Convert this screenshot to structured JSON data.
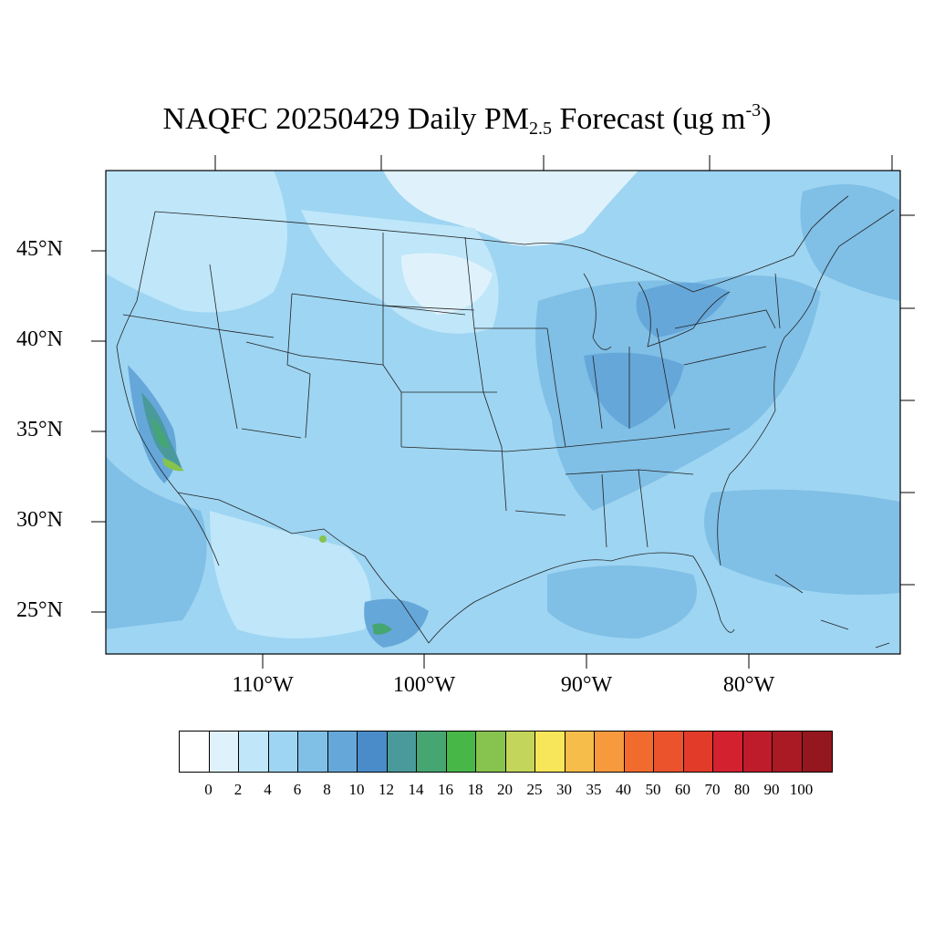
{
  "title": {
    "prefix": "NAQFC 20250429 Daily PM",
    "subscript": "2.5",
    "middle": " Forecast (ug m",
    "superscript": "-3",
    "suffix": ")"
  },
  "map": {
    "lat_labels": [
      "45°N",
      "40°N",
      "35°N",
      "30°N",
      "25°N"
    ],
    "lon_labels": [
      "110°W",
      "100°W",
      "90°W",
      "80°W"
    ],
    "background_color": "#9ed5f2"
  },
  "colorbar": {
    "colors": [
      "#ffffff",
      "#dff2fc",
      "#bfe6f9",
      "#9ed5f2",
      "#80bfe6",
      "#66a7da",
      "#4a8cc9",
      "#4a9a9c",
      "#45a672",
      "#47b748",
      "#86c34f",
      "#c3d55a",
      "#f8e65a",
      "#f7bd4a",
      "#f79a3d",
      "#f26b2e",
      "#eb532c",
      "#e33b2a",
      "#d42130",
      "#bf1c2b",
      "#aa1a25",
      "#94161e"
    ],
    "labels": [
      "0",
      "2",
      "4",
      "6",
      "8",
      "10",
      "12",
      "14",
      "16",
      "18",
      "20",
      "25",
      "30",
      "35",
      "40",
      "50",
      "60",
      "70",
      "80",
      "90",
      "100"
    ]
  }
}
